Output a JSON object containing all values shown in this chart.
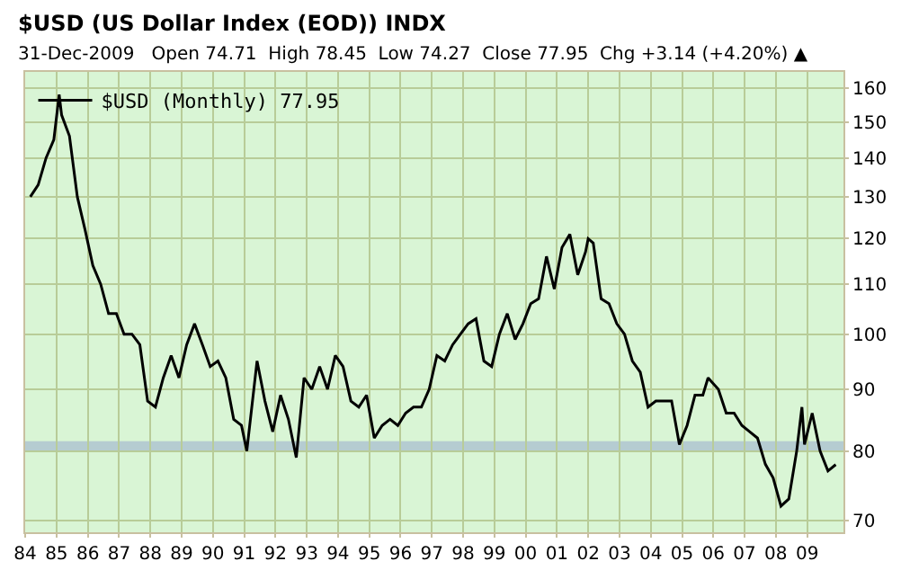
{
  "chart_data": {
    "type": "line",
    "title": "$USD (US Dollar Index (EOD)) INDX",
    "subtitle": "31-Dec-2009   Open 74.71  High 78.45  Low 74.27  Close 77.95  Chg +3.14 (+4.20%) ▲",
    "x": [
      "1984-03",
      "1984-06",
      "1984-09",
      "1984-12",
      "1985-02",
      "1985-03",
      "1985-06",
      "1985-09",
      "1985-12",
      "1986-03",
      "1986-06",
      "1986-09",
      "1986-12",
      "1987-03",
      "1987-06",
      "1987-09",
      "1987-12",
      "1988-03",
      "1988-06",
      "1988-09",
      "1988-12",
      "1989-03",
      "1989-06",
      "1989-09",
      "1989-12",
      "1990-03",
      "1990-06",
      "1990-09",
      "1990-12",
      "1991-02",
      "1991-06",
      "1991-09",
      "1991-12",
      "1992-03",
      "1992-06",
      "1992-09",
      "1992-12",
      "1993-03",
      "1993-06",
      "1993-09",
      "1993-12",
      "1994-03",
      "1994-06",
      "1994-09",
      "1994-12",
      "1995-03",
      "1995-06",
      "1995-09",
      "1995-12",
      "1996-03",
      "1996-06",
      "1996-09",
      "1996-12",
      "1997-03",
      "1997-06",
      "1997-09",
      "1997-12",
      "1998-03",
      "1998-06",
      "1998-09",
      "1998-12",
      "1999-03",
      "1999-06",
      "1999-09",
      "1999-12",
      "2000-03",
      "2000-06",
      "2000-09",
      "2000-12",
      "2001-03",
      "2001-06",
      "2001-09",
      "2001-12",
      "2002-01",
      "2002-03",
      "2002-06",
      "2002-09",
      "2002-12",
      "2003-03",
      "2003-06",
      "2003-09",
      "2003-12",
      "2004-03",
      "2004-06",
      "2004-09",
      "2004-12",
      "2005-03",
      "2005-06",
      "2005-09",
      "2005-11",
      "2006-03",
      "2006-06",
      "2006-09",
      "2006-12",
      "2007-03",
      "2007-06",
      "2007-09",
      "2007-12",
      "2008-03",
      "2008-06",
      "2008-09",
      "2008-11",
      "2008-12",
      "2009-03",
      "2009-06",
      "2009-09",
      "2009-12"
    ],
    "series": [
      {
        "name": "$USD (Monthly) 77.95",
        "color": "#000000",
        "values": [
          130,
          133,
          140,
          145,
          158,
          152,
          146,
          130,
          122,
          114,
          110,
          104,
          104,
          100,
          100,
          98,
          88,
          87,
          92,
          96,
          92,
          98,
          102,
          98,
          94,
          95,
          92,
          85,
          84,
          80,
          95,
          88,
          83,
          89,
          85,
          79,
          92,
          90,
          94,
          90,
          96,
          94,
          88,
          87,
          89,
          82,
          84,
          85,
          84,
          86,
          87,
          87,
          90,
          96,
          95,
          98,
          100,
          102,
          103,
          95,
          94,
          100,
          104,
          99,
          102,
          106,
          107,
          116,
          109,
          118,
          121,
          112,
          117,
          120,
          119,
          107,
          106,
          102,
          100,
          95,
          93,
          87,
          88,
          88,
          88,
          81,
          84,
          89,
          89,
          92,
          90,
          86,
          86,
          84,
          83,
          82,
          78,
          76,
          72,
          73,
          80,
          87,
          81,
          86,
          80,
          77,
          77.95
        ]
      }
    ],
    "log": "y",
    "ylim": [
      68.5,
      165
    ],
    "yticks": [
      70,
      80,
      90,
      100,
      110,
      120,
      130,
      140,
      150,
      160
    ],
    "xlim": [
      "1984-01",
      "2010-03"
    ],
    "xticks": [
      {
        "value": "1984-01",
        "label": "84"
      },
      {
        "value": "1985-01",
        "label": "85"
      },
      {
        "value": "1986-01",
        "label": "86"
      },
      {
        "value": "1987-01",
        "label": "87"
      },
      {
        "value": "1988-01",
        "label": "88"
      },
      {
        "value": "1989-01",
        "label": "89"
      },
      {
        "value": "1990-01",
        "label": "90"
      },
      {
        "value": "1991-01",
        "label": "91"
      },
      {
        "value": "1992-01",
        "label": "92"
      },
      {
        "value": "1993-01",
        "label": "93"
      },
      {
        "value": "1994-01",
        "label": "94"
      },
      {
        "value": "1995-01",
        "label": "95"
      },
      {
        "value": "1996-01",
        "label": "96"
      },
      {
        "value": "1997-01",
        "label": "97"
      },
      {
        "value": "1998-01",
        "label": "98"
      },
      {
        "value": "1999-01",
        "label": "99"
      },
      {
        "value": "2000-01",
        "label": "00"
      },
      {
        "value": "2001-01",
        "label": "01"
      },
      {
        "value": "2002-01",
        "label": "02"
      },
      {
        "value": "2003-01",
        "label": "03"
      },
      {
        "value": "2004-01",
        "label": "04"
      },
      {
        "value": "2005-01",
        "label": "05"
      },
      {
        "value": "2006-01",
        "label": "06"
      },
      {
        "value": "2007-01",
        "label": "07"
      },
      {
        "value": "2008-01",
        "label": "08"
      },
      {
        "value": "2009-01",
        "label": "09"
      }
    ],
    "bands": [
      {
        "axis": "y",
        "from": 80,
        "to": 81.5,
        "color": "#b0c8d0"
      }
    ],
    "grid": true,
    "legend": "top left",
    "marker": "none",
    "line_style": "solid"
  }
}
